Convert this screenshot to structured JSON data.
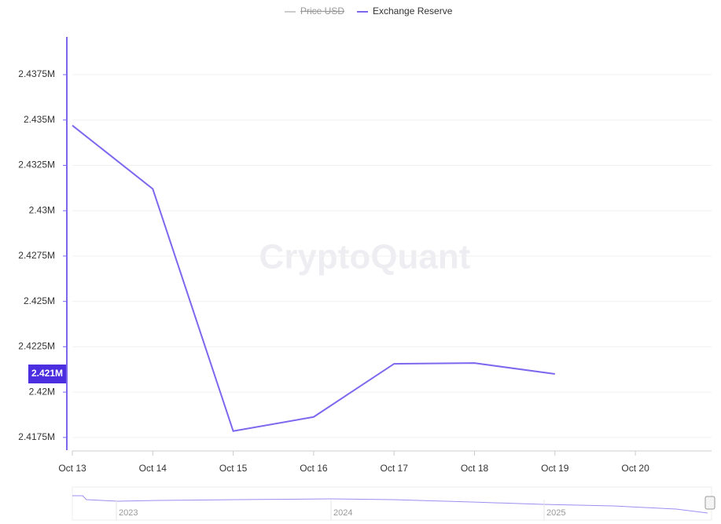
{
  "chart_data": {
    "type": "line",
    "watermark": "CryptoQuant",
    "categories": [
      "Oct 13",
      "Oct 14",
      "Oct 15",
      "Oct 16",
      "Oct 17",
      "Oct 18",
      "Oct 19",
      "Oct 20"
    ],
    "series": [
      {
        "name": "Exchange Reserve",
        "color": "#7b68ee",
        "values": [
          2434700,
          2431200,
          2417850,
          2418630,
          2421560,
          2421600,
          2421000,
          null
        ]
      }
    ],
    "hidden_series": [
      {
        "name": "Price USD",
        "color": "#cccccc"
      }
    ],
    "last_value_label": "2.421M",
    "ylim": [
      2416800,
      2439580
    ],
    "yticks": [
      {
        "value": 2417500,
        "label": "2.4175M"
      },
      {
        "value": 2420000,
        "label": "2.42M"
      },
      {
        "value": 2422500,
        "label": "2.4225M"
      },
      {
        "value": 2425000,
        "label": "2.425M"
      },
      {
        "value": 2427500,
        "label": "2.4275M"
      },
      {
        "value": 2430000,
        "label": "2.43M"
      },
      {
        "value": 2432500,
        "label": "2.4325M"
      },
      {
        "value": 2435000,
        "label": "2.435M"
      },
      {
        "value": 2437500,
        "label": "2.4375M"
      }
    ],
    "grid": true,
    "navigator": {
      "labels": [
        "2023",
        "2024",
        "2025"
      ]
    }
  }
}
